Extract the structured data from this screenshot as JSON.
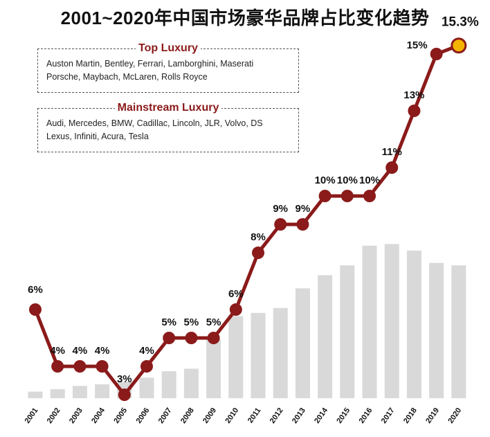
{
  "title": "2001~2020年中国市场豪华品牌占比变化趋势",
  "legend_boxes": {
    "top": {
      "title": "Top Luxury",
      "line1": "Auston Martin, Bentley, Ferrari, Lamborghini, Maserati",
      "line2": "Porsche, Maybach, McLaren, Rolls Royce"
    },
    "main": {
      "title": "Mainstream Luxury",
      "line1": "Audi, Mercedes, BMW, Cadillac, Lincoln, JLR, Volvo, DS",
      "line2": "Lexus, Infiniti, Acura, Tesla"
    }
  },
  "colors": {
    "line": "#8b1a1a",
    "bar": "#d9d9d9",
    "last_point": "#f5b400"
  },
  "chart_data": {
    "type": "line",
    "x": [
      "2001",
      "2002",
      "2003",
      "2004",
      "2005",
      "2006",
      "2007",
      "2008",
      "2009",
      "2010",
      "2011",
      "2012",
      "2013",
      "2014",
      "2015",
      "2016",
      "2017",
      "2018",
      "2019",
      "2020"
    ],
    "series": [
      {
        "values": [
          6,
          4,
          4,
          4,
          3,
          4,
          5,
          5,
          5,
          6,
          8,
          9,
          9,
          10,
          10,
          10,
          11,
          13,
          15,
          15.3
        ],
        "labels": [
          "6%",
          "4%",
          "4%",
          "4%",
          "3%",
          "4%",
          "5%",
          "5%",
          "5%",
          "6%",
          "8%",
          "9%",
          "9%",
          "10%",
          "10%",
          "10%",
          "11%",
          "13%",
          "15%",
          "15.3%"
        ]
      },
      {
        "type": "bar",
        "values": [
          8,
          11,
          15,
          17,
          20,
          25,
          33,
          36,
          72,
          100,
          104,
          110,
          134,
          150,
          162,
          186,
          188,
          180,
          165,
          162
        ]
      }
    ],
    "grid": false,
    "legend": "none"
  }
}
